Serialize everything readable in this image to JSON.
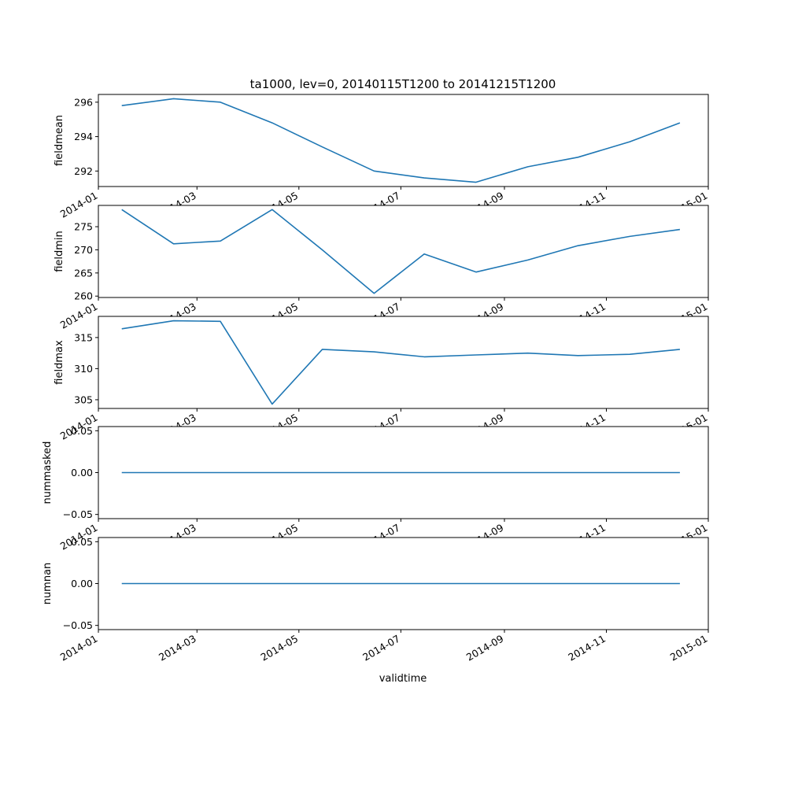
{
  "title": "ta1000, lev=0, 20140115T1200 to 20141215T1200",
  "xlabel": "validtime",
  "line_color": "#1f77b4",
  "chart_data": [
    {
      "type": "line",
      "ylabel": "fieldmean",
      "x": [
        "2014-01-15",
        "2014-02-15",
        "2014-03-15",
        "2014-04-15",
        "2014-05-15",
        "2014-06-15",
        "2014-07-15",
        "2014-08-15",
        "2014-09-15",
        "2014-10-15",
        "2014-11-15",
        "2014-12-15"
      ],
      "y": [
        295.8,
        296.2,
        296.0,
        294.8,
        293.4,
        292.0,
        291.6,
        291.35,
        292.25,
        292.8,
        293.7,
        294.8
      ],
      "xlim": [
        "2014-01-01",
        "2015-01-01"
      ],
      "ylim": [
        291.1,
        296.45
      ],
      "yticks": [
        292,
        294,
        296
      ],
      "ytick_labels": [
        "292",
        "294",
        "296"
      ],
      "xticks": [
        "2014-01-01",
        "2014-03-01",
        "2014-05-01",
        "2014-07-01",
        "2014-09-01",
        "2014-11-01",
        "2015-01-01"
      ],
      "xtick_labels": [
        "2014-01",
        "2014-03",
        "2014-05",
        "2014-07",
        "2014-09",
        "2014-11",
        "2015-01"
      ]
    },
    {
      "type": "line",
      "ylabel": "fieldmin",
      "x": [
        "2014-01-15",
        "2014-02-15",
        "2014-03-15",
        "2014-04-15",
        "2014-05-15",
        "2014-06-15",
        "2014-07-15",
        "2014-08-15",
        "2014-09-15",
        "2014-10-15",
        "2014-11-15",
        "2014-12-15"
      ],
      "y": [
        278.7,
        271.3,
        271.9,
        278.7,
        270.0,
        260.6,
        269.1,
        265.2,
        267.8,
        270.9,
        272.9,
        274.4
      ],
      "xlim": [
        "2014-01-01",
        "2015-01-01"
      ],
      "ylim": [
        259.7,
        279.6
      ],
      "yticks": [
        260,
        265,
        270,
        275
      ],
      "ytick_labels": [
        "260",
        "265",
        "270",
        "275"
      ],
      "xticks": [
        "2014-01-01",
        "2014-03-01",
        "2014-05-01",
        "2014-07-01",
        "2014-09-01",
        "2014-11-01",
        "2015-01-01"
      ],
      "xtick_labels": [
        "2014-01",
        "2014-03",
        "2014-05",
        "2014-07",
        "2014-09",
        "2014-11",
        "2015-01"
      ]
    },
    {
      "type": "line",
      "ylabel": "fieldmax",
      "x": [
        "2014-01-15",
        "2014-02-15",
        "2014-03-15",
        "2014-04-15",
        "2014-05-15",
        "2014-06-15",
        "2014-07-15",
        "2014-08-15",
        "2014-09-15",
        "2014-10-15",
        "2014-11-15",
        "2014-12-15"
      ],
      "y": [
        316.4,
        317.7,
        317.6,
        304.3,
        313.1,
        312.7,
        311.9,
        312.2,
        312.5,
        312.1,
        312.3,
        313.1
      ],
      "xlim": [
        "2014-01-01",
        "2015-01-01"
      ],
      "ylim": [
        303.6,
        318.4
      ],
      "yticks": [
        305,
        310,
        315
      ],
      "ytick_labels": [
        "305",
        "310",
        "315"
      ],
      "xticks": [
        "2014-01-01",
        "2014-03-01",
        "2014-05-01",
        "2014-07-01",
        "2014-09-01",
        "2014-11-01",
        "2015-01-01"
      ],
      "xtick_labels": [
        "2014-01",
        "2014-03",
        "2014-05",
        "2014-07",
        "2014-09",
        "2014-11",
        "2015-01"
      ]
    },
    {
      "type": "line",
      "ylabel": "nummasked",
      "x": [
        "2014-01-15",
        "2014-02-15",
        "2014-03-15",
        "2014-04-15",
        "2014-05-15",
        "2014-06-15",
        "2014-07-15",
        "2014-08-15",
        "2014-09-15",
        "2014-10-15",
        "2014-11-15",
        "2014-12-15"
      ],
      "y": [
        0,
        0,
        0,
        0,
        0,
        0,
        0,
        0,
        0,
        0,
        0,
        0
      ],
      "xlim": [
        "2014-01-01",
        "2015-01-01"
      ],
      "ylim": [
        -0.055,
        0.055
      ],
      "yticks": [
        -0.05,
        0.0,
        0.05
      ],
      "ytick_labels": [
        "−0.05",
        "0.00",
        "0.05"
      ],
      "xticks": [
        "2014-01-01",
        "2014-03-01",
        "2014-05-01",
        "2014-07-01",
        "2014-09-01",
        "2014-11-01",
        "2015-01-01"
      ],
      "xtick_labels": [
        "2014-01",
        "2014-03",
        "2014-05",
        "2014-07",
        "2014-09",
        "2014-11",
        "2015-01"
      ]
    },
    {
      "type": "line",
      "ylabel": "numnan",
      "x": [
        "2014-01-15",
        "2014-02-15",
        "2014-03-15",
        "2014-04-15",
        "2014-05-15",
        "2014-06-15",
        "2014-07-15",
        "2014-08-15",
        "2014-09-15",
        "2014-10-15",
        "2014-11-15",
        "2014-12-15"
      ],
      "y": [
        0,
        0,
        0,
        0,
        0,
        0,
        0,
        0,
        0,
        0,
        0,
        0
      ],
      "xlim": [
        "2014-01-01",
        "2015-01-01"
      ],
      "ylim": [
        -0.055,
        0.055
      ],
      "yticks": [
        -0.05,
        0.0,
        0.05
      ],
      "ytick_labels": [
        "−0.05",
        "0.00",
        "0.05"
      ],
      "xticks": [
        "2014-01-01",
        "2014-03-01",
        "2014-05-01",
        "2014-07-01",
        "2014-09-01",
        "2014-11-01",
        "2015-01-01"
      ],
      "xtick_labels": [
        "2014-01",
        "2014-03",
        "2014-05",
        "2014-07",
        "2014-09",
        "2014-11",
        "2015-01"
      ]
    }
  ]
}
